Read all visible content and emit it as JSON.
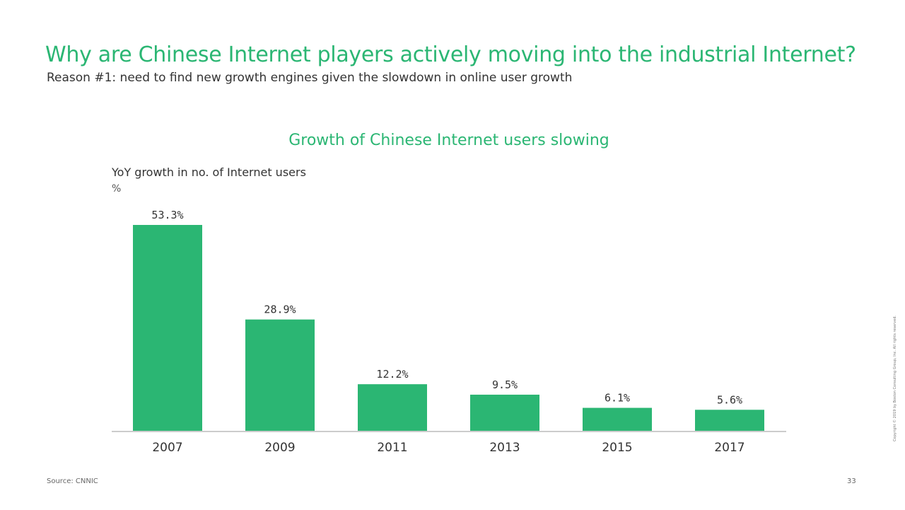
{
  "slide": {
    "title": "Why are Chinese Internet players actively moving into the industrial Internet?",
    "subtitle": "Reason #1: need to find new growth engines given the slowdown in online user growth",
    "source": "Source: CNNIC",
    "page_number": "33",
    "copyright": "Copyright © 2019 by Boston Consulting Group, Inc. All rights reserved."
  },
  "chart_data": {
    "type": "bar",
    "title": "Growth of Chinese Internet users slowing",
    "ylabel": "YoY growth in no. of Internet users",
    "yunit": "%",
    "categories": [
      "2007",
      "2009",
      "2011",
      "2013",
      "2015",
      "2017"
    ],
    "values": [
      53.3,
      28.9,
      12.2,
      9.5,
      6.1,
      5.6
    ],
    "data_labels": [
      "53.3%",
      "28.9%",
      "12.2%",
      "9.5%",
      "6.1%",
      "5.6%"
    ],
    "ylim": [
      0,
      53.3
    ],
    "grid": false,
    "legend": "none",
    "colors": {
      "bar": "#2bb673",
      "axis": "#cccccc",
      "title": "#2bb673"
    }
  }
}
